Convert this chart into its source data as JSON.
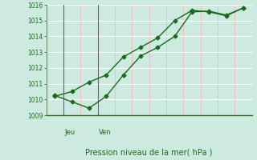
{
  "xlabel": "Pression niveau de la mer( hPa )",
  "ylim": [
    1009,
    1016
  ],
  "yticks": [
    1009,
    1010,
    1011,
    1012,
    1013,
    1014,
    1015,
    1016
  ],
  "day_labels": [
    "Jeu",
    "Ven"
  ],
  "line1_x": [
    0,
    1,
    2,
    3,
    4,
    5,
    6,
    7,
    8,
    9,
    10,
    11
  ],
  "line1_y": [
    1010.2,
    1010.5,
    1011.1,
    1011.55,
    1012.7,
    1013.3,
    1013.9,
    1015.0,
    1015.65,
    1015.55,
    1015.3,
    1015.8
  ],
  "line2_x": [
    0,
    1,
    2,
    3,
    4,
    5,
    6,
    7,
    8,
    9,
    10,
    11
  ],
  "line2_y": [
    1010.25,
    1009.85,
    1009.45,
    1010.2,
    1011.55,
    1012.75,
    1013.3,
    1014.0,
    1015.55,
    1015.6,
    1015.35,
    1015.8
  ],
  "line_color": "#1a6b1a",
  "marker": "D",
  "marker_size": 2.5,
  "bg_color": "#cdeae0",
  "grid_color_v": "#f0b8b8",
  "grid_color_h": "#ffffff",
  "sep_color": "#666666",
  "axis_color": "#336633",
  "jeu_x_idx": 1,
  "ven_x_idx": 3,
  "n_cols": 11,
  "xlim": [
    -0.5,
    11.5
  ]
}
